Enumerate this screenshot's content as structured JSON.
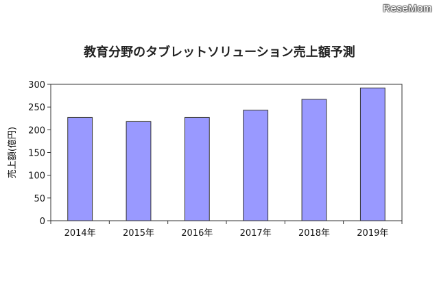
{
  "watermark": "ReseMom",
  "chart_data": {
    "type": "bar",
    "title": "教育分野のタブレットソリューション売上額予測",
    "xlabel": "",
    "ylabel": "売上額(億円)",
    "categories": [
      "2014年",
      "2015年",
      "2016年",
      "2017年",
      "2018年",
      "2019年"
    ],
    "values": [
      227,
      218,
      227,
      243,
      267,
      292
    ],
    "ylim": [
      0,
      300
    ],
    "yticks": [
      0,
      50,
      100,
      150,
      200,
      250,
      300
    ],
    "bar_color": "#9999ff",
    "bar_edge_color": "#333333",
    "grid": false,
    "legend": "none"
  }
}
